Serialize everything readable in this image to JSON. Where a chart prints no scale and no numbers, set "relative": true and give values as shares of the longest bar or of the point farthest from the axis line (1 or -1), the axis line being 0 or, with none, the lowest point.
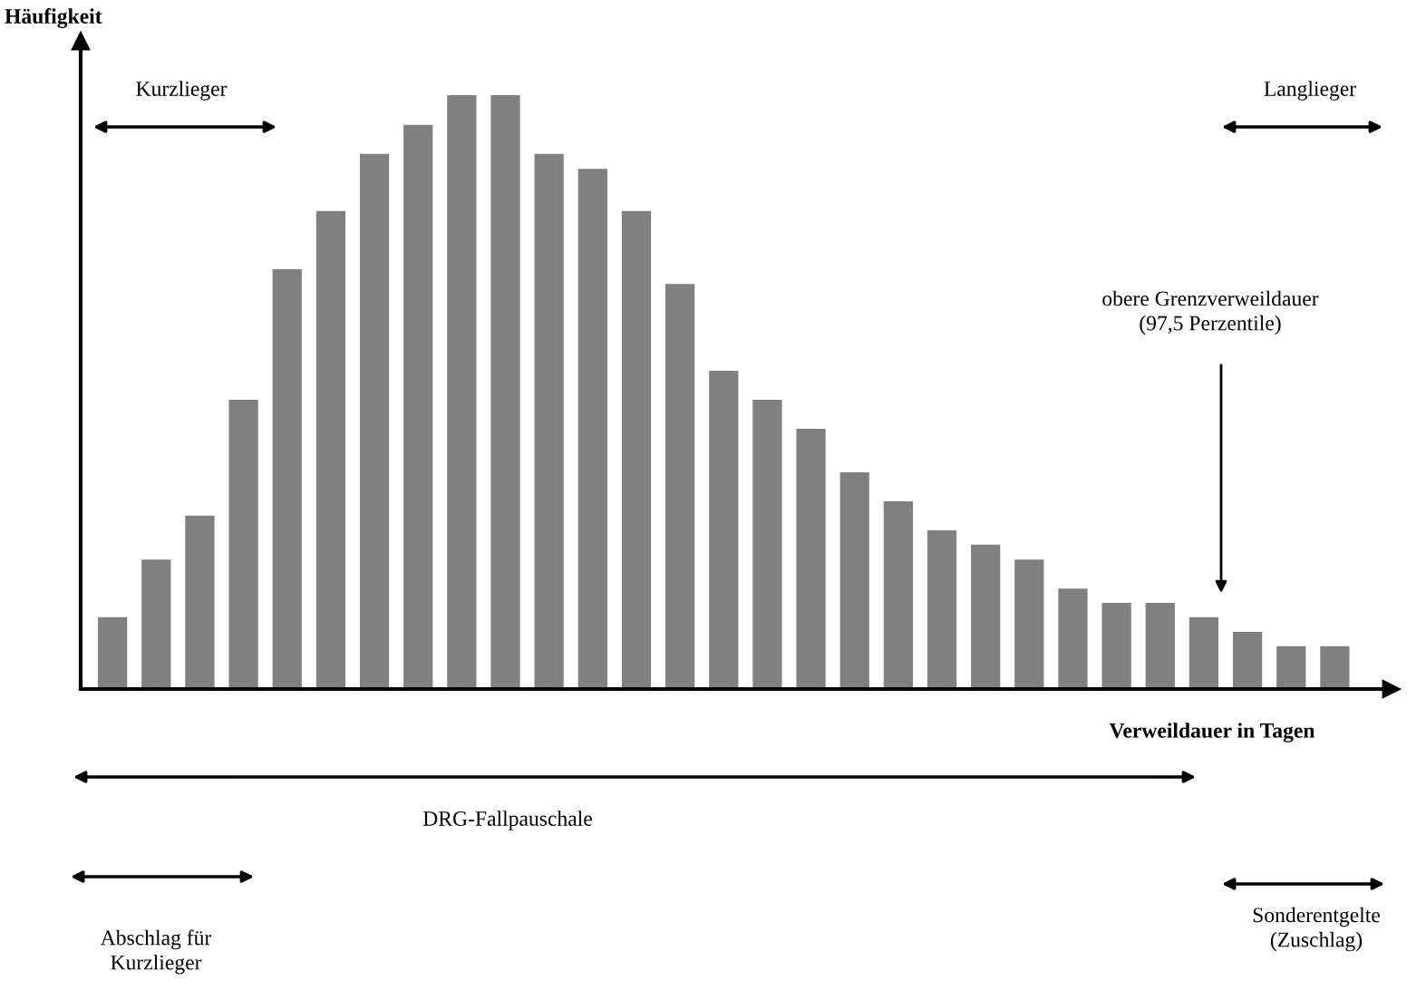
{
  "chart_data": {
    "type": "bar",
    "relative": true,
    "xlabel": "Verweildauer in Tagen",
    "ylabel": "Häufigkeit",
    "color": "#808080",
    "grid": false,
    "legend": false,
    "categories": [
      null,
      null,
      null,
      null,
      null,
      null,
      null,
      null,
      null,
      null,
      null,
      null,
      null,
      null,
      null,
      null,
      null,
      null,
      null,
      null,
      null,
      null,
      null,
      null,
      null,
      null,
      null,
      null,
      null
    ],
    "values": [
      0.121,
      0.218,
      0.292,
      0.487,
      0.707,
      0.805,
      0.901,
      0.95,
      1,
      1,
      0.901,
      0.876,
      0.805,
      0.682,
      0.536,
      0.487,
      0.438,
      0.365,
      0.316,
      0.267,
      0.243,
      0.218,
      0.169,
      0.145,
      0.145,
      0.121,
      0.096,
      0.072,
      0.072
    ],
    "annotations": [
      "Kurzlieger",
      "Langlieger",
      "obere Grenzverweildauer\n(97,5 Perzentile)",
      "DRG-Fallpauschale",
      "Abschlag für\nKurzlieger",
      "Sonderentgelte\n(Zuschlag)"
    ]
  }
}
